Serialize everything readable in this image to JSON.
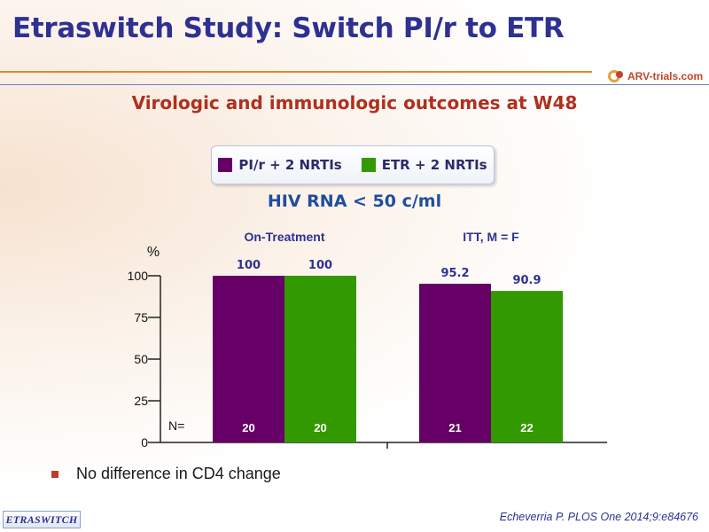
{
  "title": "Etraswitch Study: Switch PI/r to ETR",
  "logo_text": "ARV-trials.com",
  "subtitle": "Virologic and immunologic outcomes at W48",
  "legend": [
    {
      "label": "PI/r + 2 NRTIs",
      "color": "#660066"
    },
    {
      "label": "ETR + 2 NRTIs",
      "color": "#339900"
    }
  ],
  "chart_data": {
    "type": "bar",
    "title": "HIV RNA < 50 c/ml",
    "ylabel": "%",
    "ylim": [
      0,
      100
    ],
    "yticks": [
      0,
      25,
      50,
      75,
      100
    ],
    "categories": [
      "On-Treatment",
      "ITT, M = F"
    ],
    "series": [
      {
        "name": "PI/r + 2 NRTIs",
        "color": "#660066",
        "values": [
          100,
          95.2
        ],
        "n": [
          20,
          21
        ]
      },
      {
        "name": "ETR + 2 NRTIs",
        "color": "#339900",
        "values": [
          100,
          90.9
        ],
        "n": [
          20,
          22
        ]
      }
    ],
    "n_label": "N=",
    "grid": false
  },
  "bullet": "No difference in CD4 change",
  "footer_tag": "ETRASWITCH",
  "citation": "Echeverria P. PLOS One 2014;9:e84676"
}
